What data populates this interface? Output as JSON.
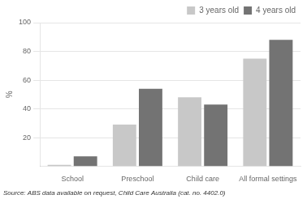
{
  "chart_data": {
    "type": "bar",
    "categories": [
      "School",
      "Preschool",
      "Child care",
      "All formal settings"
    ],
    "series": [
      {
        "name": "3 years old",
        "color": "#c8c8c8",
        "values": [
          1,
          29,
          48,
          75
        ]
      },
      {
        "name": "4 years old",
        "color": "#737373",
        "values": [
          7,
          54,
          43,
          88
        ]
      }
    ],
    "ylabel": "%",
    "ylim": [
      0,
      100
    ],
    "yticks": [
      20,
      40,
      60,
      80,
      100
    ],
    "grid": true,
    "legend": "upper right",
    "annotations": [
      "Source: ABS data available on request, Child Care Australia (cat. no. 4402.0)"
    ]
  }
}
